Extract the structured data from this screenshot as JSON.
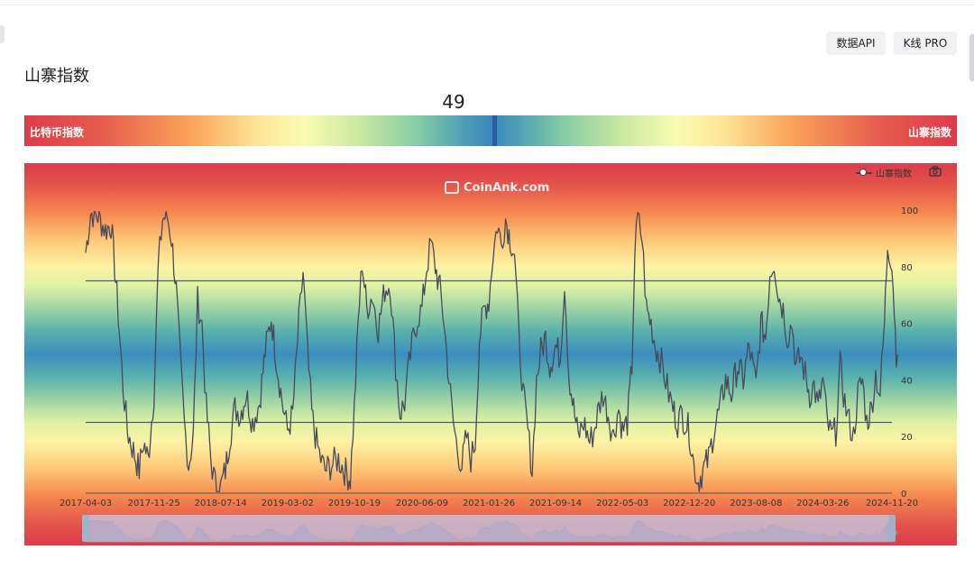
{
  "header": {
    "buttons": [
      {
        "label": "数据API"
      },
      {
        "label": "K线 PRO"
      }
    ],
    "title": "山寨指数"
  },
  "gauge": {
    "value": "49",
    "left_label": "比特币指数",
    "right_label": "山寨指数",
    "fraction": 0.49
  },
  "chart": {
    "watermark": "CoinAnk.com",
    "legend_label": "山寨指数",
    "camera_icon": "camera-icon",
    "slider_icon": "range-slider"
  },
  "colors": {
    "line": "#454a5c",
    "reference_line": "#4c5c7c",
    "gauge_marker": "#2c59a8",
    "low": "#3a86bd",
    "high": "#dc3c4a"
  },
  "chart_data": {
    "type": "line",
    "series": [
      {
        "name": "山寨指数",
        "points": [
          [
            "2017-04-03",
            85
          ],
          [
            "2017-04-20",
            99
          ],
          [
            "2017-05-15",
            98
          ],
          [
            "2017-06-10",
            93
          ],
          [
            "2017-06-30",
            95
          ],
          [
            "2017-07-20",
            70
          ],
          [
            "2017-08-10",
            38
          ],
          [
            "2017-08-25",
            22
          ],
          [
            "2017-09-15",
            15
          ],
          [
            "2017-10-05",
            8
          ],
          [
            "2017-10-20",
            18
          ],
          [
            "2017-11-05",
            12
          ],
          [
            "2017-11-25",
            35
          ],
          [
            "2017-12-10",
            80
          ],
          [
            "2017-12-25",
            97
          ],
          [
            "2018-01-10",
            98
          ],
          [
            "2018-01-25",
            90
          ],
          [
            "2018-02-10",
            72
          ],
          [
            "2018-02-25",
            45
          ],
          [
            "2018-03-10",
            25
          ],
          [
            "2018-03-25",
            10
          ],
          [
            "2018-04-10",
            20
          ],
          [
            "2018-04-25",
            68
          ],
          [
            "2018-05-10",
            60
          ],
          [
            "2018-05-25",
            30
          ],
          [
            "2018-06-10",
            12
          ],
          [
            "2018-06-25",
            3
          ],
          [
            "2018-07-14",
            2
          ],
          [
            "2018-07-30",
            8
          ],
          [
            "2018-08-15",
            20
          ],
          [
            "2018-09-01",
            30
          ],
          [
            "2018-09-20",
            28
          ],
          [
            "2018-10-10",
            35
          ],
          [
            "2018-11-01",
            25
          ],
          [
            "2018-11-25",
            32
          ],
          [
            "2018-12-15",
            50
          ],
          [
            "2019-01-05",
            62
          ],
          [
            "2019-01-25",
            45
          ],
          [
            "2019-02-15",
            30
          ],
          [
            "2019-03-02",
            22
          ],
          [
            "2019-03-20",
            28
          ],
          [
            "2019-04-10",
            60
          ],
          [
            "2019-04-25",
            78
          ],
          [
            "2019-05-10",
            50
          ],
          [
            "2019-05-25",
            28
          ],
          [
            "2019-06-10",
            18
          ],
          [
            "2019-06-25",
            12
          ],
          [
            "2019-07-10",
            8
          ],
          [
            "2019-08-01",
            10
          ],
          [
            "2019-08-25",
            12
          ],
          [
            "2019-09-15",
            8
          ],
          [
            "2019-10-05",
            5
          ],
          [
            "2019-10-19",
            30
          ],
          [
            "2019-11-01",
            60
          ],
          [
            "2019-11-15",
            82
          ],
          [
            "2019-12-01",
            65
          ],
          [
            "2019-12-20",
            70
          ],
          [
            "2020-01-10",
            58
          ],
          [
            "2020-02-01",
            72
          ],
          [
            "2020-02-20",
            74
          ],
          [
            "2020-03-10",
            45
          ],
          [
            "2020-03-25",
            28
          ],
          [
            "2020-04-10",
            32
          ],
          [
            "2020-04-25",
            45
          ],
          [
            "2020-05-10",
            55
          ],
          [
            "2020-05-25",
            62
          ],
          [
            "2020-06-09",
            65
          ],
          [
            "2020-06-25",
            80
          ],
          [
            "2020-07-10",
            88
          ],
          [
            "2020-07-25",
            80
          ],
          [
            "2020-08-10",
            72
          ],
          [
            "2020-08-25",
            60
          ],
          [
            "2020-09-10",
            40
          ],
          [
            "2020-09-25",
            25
          ],
          [
            "2020-10-10",
            15
          ],
          [
            "2020-10-25",
            10
          ],
          [
            "2020-11-10",
            20
          ],
          [
            "2020-11-25",
            12
          ],
          [
            "2020-12-10",
            18
          ],
          [
            "2020-12-25",
            55
          ],
          [
            "2021-01-10",
            65
          ],
          [
            "2021-01-26",
            68
          ],
          [
            "2021-02-10",
            85
          ],
          [
            "2021-02-25",
            95
          ],
          [
            "2021-03-10",
            88
          ],
          [
            "2021-03-25",
            97
          ],
          [
            "2021-04-10",
            90
          ],
          [
            "2021-04-25",
            85
          ],
          [
            "2021-05-10",
            55
          ],
          [
            "2021-05-25",
            35
          ],
          [
            "2021-06-10",
            22
          ],
          [
            "2021-06-25",
            8
          ],
          [
            "2021-07-10",
            40
          ],
          [
            "2021-07-25",
            50
          ],
          [
            "2021-08-10",
            55
          ],
          [
            "2021-08-25",
            45
          ],
          [
            "2021-09-14",
            52
          ],
          [
            "2021-09-30",
            48
          ],
          [
            "2021-10-15",
            75
          ],
          [
            "2021-10-30",
            42
          ],
          [
            "2021-11-15",
            30
          ],
          [
            "2021-12-01",
            20
          ],
          [
            "2021-12-20",
            25
          ],
          [
            "2022-01-10",
            18
          ],
          [
            "2022-01-25",
            22
          ],
          [
            "2022-02-10",
            30
          ],
          [
            "2022-02-25",
            35
          ],
          [
            "2022-03-15",
            28
          ],
          [
            "2022-04-01",
            20
          ],
          [
            "2022-04-20",
            30
          ],
          [
            "2022-05-03",
            22
          ],
          [
            "2022-05-20",
            25
          ],
          [
            "2022-06-05",
            45
          ],
          [
            "2022-06-15",
            85
          ],
          [
            "2022-06-25",
            97
          ],
          [
            "2022-07-10",
            90
          ],
          [
            "2022-07-25",
            65
          ],
          [
            "2022-08-10",
            60
          ],
          [
            "2022-08-25",
            52
          ],
          [
            "2022-09-10",
            48
          ],
          [
            "2022-09-25",
            42
          ],
          [
            "2022-10-10",
            35
          ],
          [
            "2022-10-25",
            30
          ],
          [
            "2022-11-10",
            25
          ],
          [
            "2022-11-25",
            28
          ],
          [
            "2022-12-20",
            22
          ],
          [
            "2023-01-05",
            10
          ],
          [
            "2023-01-20",
            4
          ],
          [
            "2023-02-05",
            8
          ],
          [
            "2023-02-25",
            12
          ],
          [
            "2023-03-15",
            22
          ],
          [
            "2023-04-05",
            30
          ],
          [
            "2023-04-25",
            40
          ],
          [
            "2023-05-15",
            35
          ],
          [
            "2023-06-05",
            45
          ],
          [
            "2023-06-25",
            40
          ],
          [
            "2023-07-15",
            52
          ],
          [
            "2023-08-08",
            38
          ],
          [
            "2023-08-25",
            60
          ],
          [
            "2023-09-10",
            55
          ],
          [
            "2023-09-25",
            78
          ],
          [
            "2023-10-10",
            82
          ],
          [
            "2023-10-25",
            70
          ],
          [
            "2023-11-10",
            65
          ],
          [
            "2023-11-25",
            55
          ],
          [
            "2023-12-10",
            60
          ],
          [
            "2023-12-25",
            45
          ],
          [
            "2024-01-10",
            48
          ],
          [
            "2024-01-25",
            42
          ],
          [
            "2024-02-10",
            35
          ],
          [
            "2024-02-25",
            38
          ],
          [
            "2024-03-10",
            30
          ],
          [
            "2024-03-26",
            40
          ],
          [
            "2024-04-10",
            25
          ],
          [
            "2024-04-25",
            20
          ],
          [
            "2024-05-10",
            22
          ],
          [
            "2024-05-25",
            45
          ],
          [
            "2024-06-10",
            32
          ],
          [
            "2024-06-25",
            25
          ],
          [
            "2024-07-10",
            20
          ],
          [
            "2024-07-25",
            35
          ],
          [
            "2024-08-10",
            40
          ],
          [
            "2024-08-25",
            25
          ],
          [
            "2024-09-10",
            30
          ],
          [
            "2024-09-25",
            42
          ],
          [
            "2024-10-10",
            35
          ],
          [
            "2024-10-25",
            60
          ],
          [
            "2024-11-05",
            88
          ],
          [
            "2024-11-20",
            82
          ],
          [
            "2024-11-28",
            65
          ],
          [
            "2024-12-05",
            50
          ],
          [
            "2024-12-10",
            49
          ]
        ]
      }
    ],
    "reference_lines": [
      75,
      25
    ],
    "x_ticks": [
      "2017-04-03",
      "2017-11-25",
      "2018-07-14",
      "2019-03-02",
      "2019-10-19",
      "2020-06-09",
      "2021-01-26",
      "2021-09-14",
      "2022-05-03",
      "2022-12-20",
      "2023-08-08",
      "2024-03-26",
      "2024-11-20"
    ],
    "y_ticks": [
      0,
      20,
      40,
      60,
      80,
      100
    ],
    "ylim": [
      0,
      100
    ],
    "grid": false,
    "legend_position": "top-right",
    "zoom_slider": true
  }
}
